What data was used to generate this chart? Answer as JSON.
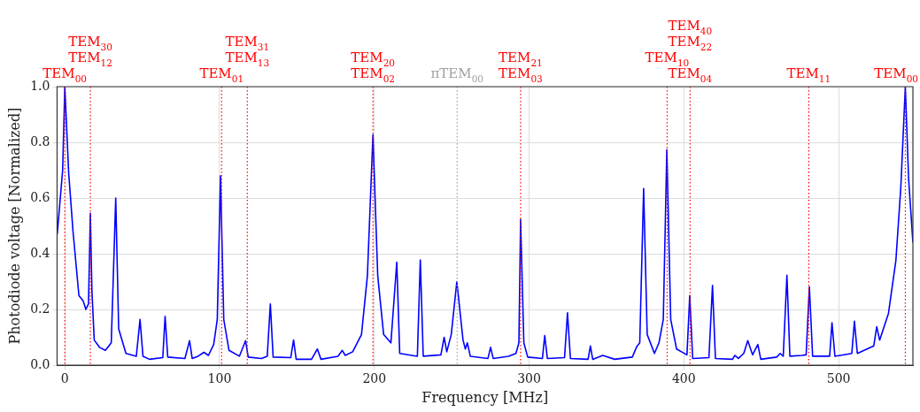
{
  "chart_data": {
    "type": "line",
    "xlabel": "Frequency [MHz]",
    "ylabel": "Photodiode voltage [Normalized]",
    "xlim": [
      -5,
      548
    ],
    "ylim": [
      0,
      1.0
    ],
    "xticks": [
      0,
      100,
      200,
      300,
      400,
      500
    ],
    "yticks": [
      {
        "value": 0,
        "label": "0.0"
      },
      {
        "value": 0.2,
        "label": "0.2"
      },
      {
        "value": 0.4,
        "label": "0.4"
      },
      {
        "value": 0.6,
        "label": "0.6"
      },
      {
        "value": 0.8,
        "label": "0.8"
      },
      {
        "value": 1.0,
        "label": "1.0"
      }
    ],
    "grid": true,
    "legend": false,
    "marker": "none",
    "line_style": "solid",
    "series": [
      {
        "color": "#0000ff",
        "x": [
          -4.9,
          -1.4,
          0,
          2.5,
          5.3,
          9.1,
          11.9,
          13.6,
          15.3,
          16.5,
          17.5,
          19.0,
          22.4,
          26.2,
          30.0,
          32.9,
          34.8,
          39.5,
          46.2,
          48.6,
          50.5,
          54.7,
          63.3,
          64.8,
          66.5,
          77.6,
          80.6,
          82.3,
          86.1,
          89.9,
          92.8,
          96.2,
          98.5,
          100.6,
          102.7,
          106.1,
          112.8,
          116.8,
          118.5,
          127.0,
          130.8,
          132.8,
          134.6,
          146.0,
          147.8,
          149.5,
          159.4,
          163.2,
          165.5,
          176.5,
          179.3,
          181.2,
          186.0,
          191.7,
          195.5,
          199.1,
          202.2,
          206.0,
          210.7,
          214.5,
          216.4,
          227.8,
          229.7,
          231.6,
          243.0,
          245.1,
          246.8,
          249.7,
          253.3,
          257.3,
          258.8,
          260.1,
          262.0,
          273.4,
          275.1,
          276.8,
          286.7,
          291.5,
          293.4,
          294.5,
          296.6,
          299.1,
          308.6,
          310.1,
          311.8,
          322.9,
          324.8,
          326.7,
          338.1,
          339.6,
          341.1,
          347.6,
          355.3,
          366.7,
          369.6,
          371.5,
          374.0,
          376.3,
          381.0,
          383.9,
          386.7,
          389.0,
          391.5,
          395.3,
          402.0,
          403.8,
          405.7,
          416.2,
          418.5,
          420.4,
          431.4,
          433.0,
          435.2,
          438.7,
          441.3,
          444.4,
          447.8,
          449.7,
          460.0,
          462.2,
          464.2,
          466.6,
          468.5,
          476.1,
          479.0,
          481.1,
          483.2,
          494.2,
          495.7,
          497.6,
          508.5,
          510.2,
          512.1,
          522.7,
          524.6,
          526.5,
          532.2,
          537.0,
          540.2,
          543.1,
          545.2,
          548.0
        ],
        "values": [
          0.47,
          0.7,
          1.0,
          0.69,
          0.48,
          0.25,
          0.23,
          0.2,
          0.22,
          0.545,
          0.27,
          0.09,
          0.064,
          0.053,
          0.08,
          0.6,
          0.13,
          0.042,
          0.032,
          0.164,
          0.032,
          0.021,
          0.027,
          0.175,
          0.029,
          0.024,
          0.088,
          0.024,
          0.032,
          0.046,
          0.035,
          0.074,
          0.164,
          0.68,
          0.164,
          0.053,
          0.032,
          0.088,
          0.029,
          0.024,
          0.032,
          0.22,
          0.029,
          0.027,
          0.09,
          0.021,
          0.021,
          0.058,
          0.021,
          0.032,
          0.053,
          0.035,
          0.048,
          0.11,
          0.32,
          0.827,
          0.32,
          0.11,
          0.08,
          0.37,
          0.042,
          0.032,
          0.378,
          0.032,
          0.037,
          0.1,
          0.048,
          0.11,
          0.3,
          0.09,
          0.058,
          0.08,
          0.032,
          0.024,
          0.064,
          0.024,
          0.032,
          0.042,
          0.08,
          0.523,
          0.08,
          0.029,
          0.024,
          0.106,
          0.024,
          0.027,
          0.188,
          0.024,
          0.021,
          0.069,
          0.021,
          0.035,
          0.021,
          0.029,
          0.067,
          0.08,
          0.634,
          0.11,
          0.042,
          0.08,
          0.164,
          0.774,
          0.164,
          0.058,
          0.037,
          0.25,
          0.024,
          0.027,
          0.286,
          0.024,
          0.021,
          0.035,
          0.024,
          0.042,
          0.088,
          0.037,
          0.074,
          0.021,
          0.029,
          0.042,
          0.032,
          0.323,
          0.032,
          0.035,
          0.037,
          0.281,
          0.032,
          0.032,
          0.152,
          0.032,
          0.042,
          0.158,
          0.042,
          0.069,
          0.138,
          0.09,
          0.186,
          0.376,
          0.64,
          1.0,
          0.67,
          0.44
        ]
      }
    ],
    "ref_lines": [
      {
        "axis": "x",
        "value": 0,
        "label": "TEM$_{00}$",
        "color": "#ff0000",
        "line_style": "dotted"
      },
      {
        "axis": "x",
        "value": 16.5,
        "label": "TEM$_{30}$\nTEM$_{12}$",
        "color": "#ff0000",
        "line_style": "dotted"
      },
      {
        "axis": "x",
        "value": 101.3,
        "label": "TEM$_{01}$",
        "color": "#ff0000",
        "line_style": "dotted"
      },
      {
        "axis": "x",
        "value": 117.9,
        "label": "TEM$_{31}$\nTEM$_{13}$",
        "color": "#ff0000",
        "line_style": "dotted"
      },
      {
        "axis": "x",
        "value": 199.1,
        "label": "TEM$_{20}$\nTEM$_{02}$",
        "color": "#ff0000",
        "line_style": "dotted"
      },
      {
        "axis": "x",
        "value": 253.5,
        "label": "πTEM$_{00}$",
        "color": "#a0a0a0",
        "line_style": "dotted"
      },
      {
        "axis": "x",
        "value": 294.5,
        "label": "TEM$_{21}$\nTEM$_{03}$",
        "color": "#ff0000",
        "line_style": "dotted"
      },
      {
        "axis": "x",
        "value": 404,
        "label": "TEM$_{40}$\nTEM$_{22}$\nTEM$_{04}$",
        "color": "#ff0000",
        "line_style": "dotted"
      },
      {
        "axis": "x",
        "value": 389.2,
        "label": "TEM$_{10}$",
        "color": "#ff0000",
        "line_style": "dotted"
      },
      {
        "axis": "x",
        "value": 480.7,
        "label": "TEM$_{11}$",
        "color": "#ff0000",
        "line_style": "dotted"
      },
      {
        "axis": "x",
        "value": 543.1,
        "label": "TEM$_{00}$",
        "color": "#ff0000",
        "line_style": "dotted"
      }
    ]
  }
}
